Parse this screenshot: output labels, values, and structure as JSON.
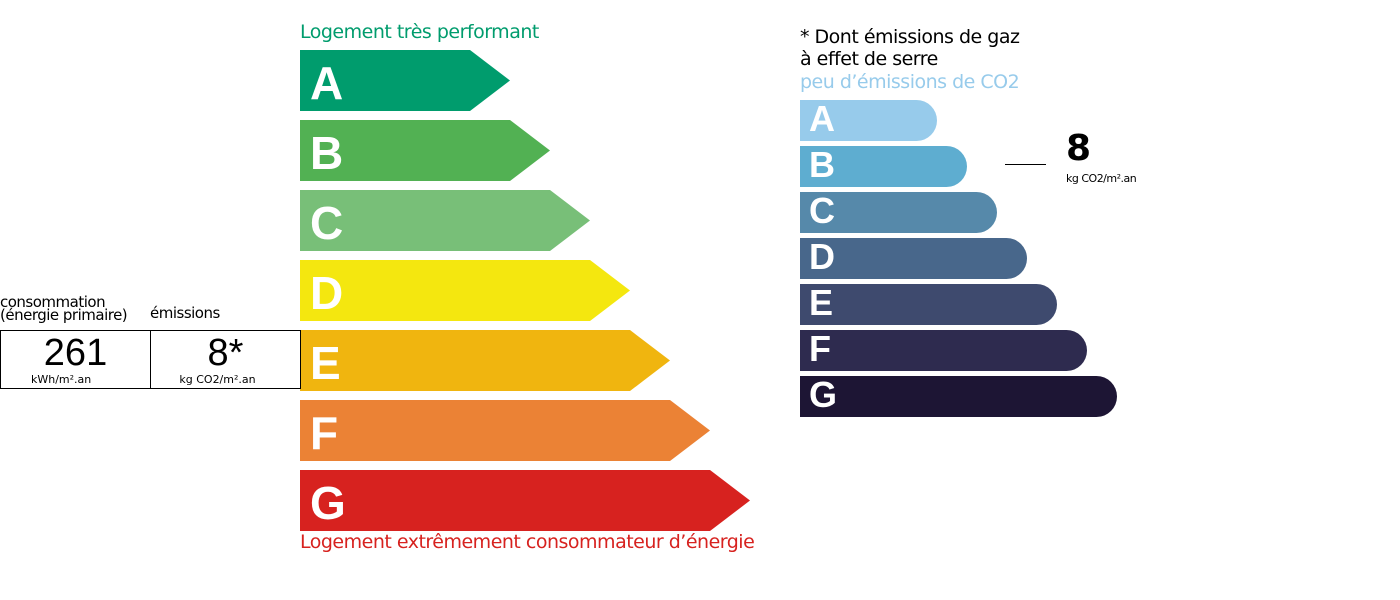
{
  "energy": {
    "top_label": "Logement très performant",
    "bottom_label": "Logement extrêmement consommateur d’énergie",
    "top_color": "#009c6d",
    "bottom_color": "#d7221f",
    "classes": [
      {
        "letter": "A",
        "color": "#009c6d"
      },
      {
        "letter": "B",
        "color": "#52b153"
      },
      {
        "letter": "C",
        "color": "#78bf78"
      },
      {
        "letter": "D",
        "color": "#f4e70f"
      },
      {
        "letter": "E",
        "color": "#f0b50f"
      },
      {
        "letter": "F",
        "color": "#eb8235"
      },
      {
        "letter": "G",
        "color": "#d7221f"
      }
    ]
  },
  "summary": {
    "consumption_label_1": "consommation",
    "consumption_label_2": "(énergie primaire)",
    "consumption_value": "261",
    "consumption_unit": "kWh/m².an",
    "emissions_label": "émissions",
    "emissions_value": "8*",
    "emissions_unit": "kg CO2/m².an"
  },
  "ghg": {
    "note_line_1": "* Dont émissions de gaz",
    "note_line_2": "à effet de serre",
    "top_label": "peu d’émissions de CO2",
    "top_color": "#97cbeb",
    "classes": [
      {
        "letter": "A",
        "color": "#97cbeb"
      },
      {
        "letter": "B",
        "color": "#5eadd0"
      },
      {
        "letter": "C",
        "color": "#5689aa"
      },
      {
        "letter": "D",
        "color": "#48678b"
      },
      {
        "letter": "E",
        "color": "#3e4a6e"
      },
      {
        "letter": "F",
        "color": "#2e2b4f"
      },
      {
        "letter": "G",
        "color": "#1d1534"
      }
    ],
    "indicator_class": "B",
    "indicator_value": "8",
    "indicator_unit": "kg CO2/m².an"
  }
}
